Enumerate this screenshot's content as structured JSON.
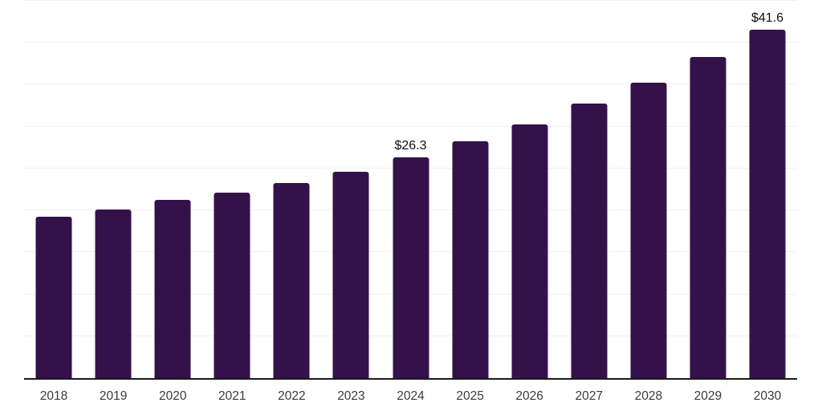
{
  "chart_data": {
    "type": "bar",
    "title": "",
    "xlabel": "",
    "ylabel": "",
    "categories": [
      "2018",
      "2019",
      "2020",
      "2021",
      "2022",
      "2023",
      "2024",
      "2025",
      "2026",
      "2027",
      "2028",
      "2029",
      "2030"
    ],
    "values": [
      19.2,
      20.1,
      21.3,
      22.1,
      23.3,
      24.6,
      26.3,
      28.2,
      30.3,
      32.7,
      35.2,
      38.3,
      41.6
    ],
    "data_labels": [
      "",
      "",
      "",
      "",
      "",
      "",
      "$26.3",
      "",
      "",
      "",
      "",
      "",
      "$41.6"
    ],
    "ylim": [
      0,
      45
    ],
    "gridline_step": 5,
    "grid": "horizontal",
    "legend_position": "none",
    "colors": {
      "bar": "#351149",
      "axis_line": "#1a1a1a",
      "gridline": "#f0f0f0",
      "tick_label": "#3a3a3a",
      "data_label": "#111111",
      "background": "#ffffff"
    }
  }
}
